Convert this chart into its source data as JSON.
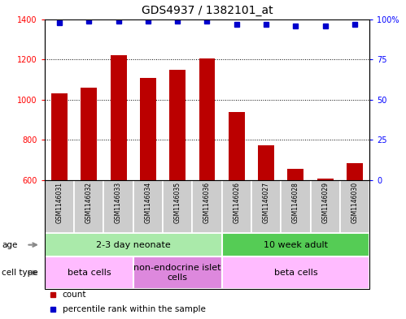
{
  "title": "GDS4937 / 1382101_at",
  "samples": [
    "GSM1146031",
    "GSM1146032",
    "GSM1146033",
    "GSM1146034",
    "GSM1146035",
    "GSM1146036",
    "GSM1146026",
    "GSM1146027",
    "GSM1146028",
    "GSM1146029",
    "GSM1146030"
  ],
  "counts": [
    1030,
    1060,
    1220,
    1110,
    1150,
    1205,
    940,
    775,
    655,
    610,
    685
  ],
  "percentiles": [
    98,
    99,
    99,
    99,
    99,
    99,
    97,
    97,
    96,
    96,
    97
  ],
  "ylim_left": [
    600,
    1400
  ],
  "ylim_right": [
    0,
    100
  ],
  "yticks_left": [
    600,
    800,
    1000,
    1200,
    1400
  ],
  "yticks_right": [
    0,
    25,
    50,
    75,
    100
  ],
  "bar_color": "#BB0000",
  "dot_color": "#0000CC",
  "bar_width": 0.55,
  "age_groups": [
    {
      "label": "2-3 day neonate",
      "start": 0,
      "end": 6,
      "color": "#AAEAAA"
    },
    {
      "label": "10 week adult",
      "start": 6,
      "end": 11,
      "color": "#55CC55"
    }
  ],
  "cell_type_groups": [
    {
      "label": "beta cells",
      "start": 0,
      "end": 3,
      "color": "#FFBBFF"
    },
    {
      "label": "non-endocrine islet\ncells",
      "start": 3,
      "end": 6,
      "color": "#DD88DD"
    },
    {
      "label": "beta cells",
      "start": 6,
      "end": 11,
      "color": "#FFBBFF"
    }
  ],
  "legend_count_label": "count",
  "legend_pct_label": "percentile rank within the sample",
  "age_row_label": "age",
  "cell_type_row_label": "cell type",
  "title_fontsize": 10,
  "tick_fontsize": 7,
  "label_fontsize": 7.5,
  "annotation_fontsize": 8,
  "sample_fontsize": 5.5
}
